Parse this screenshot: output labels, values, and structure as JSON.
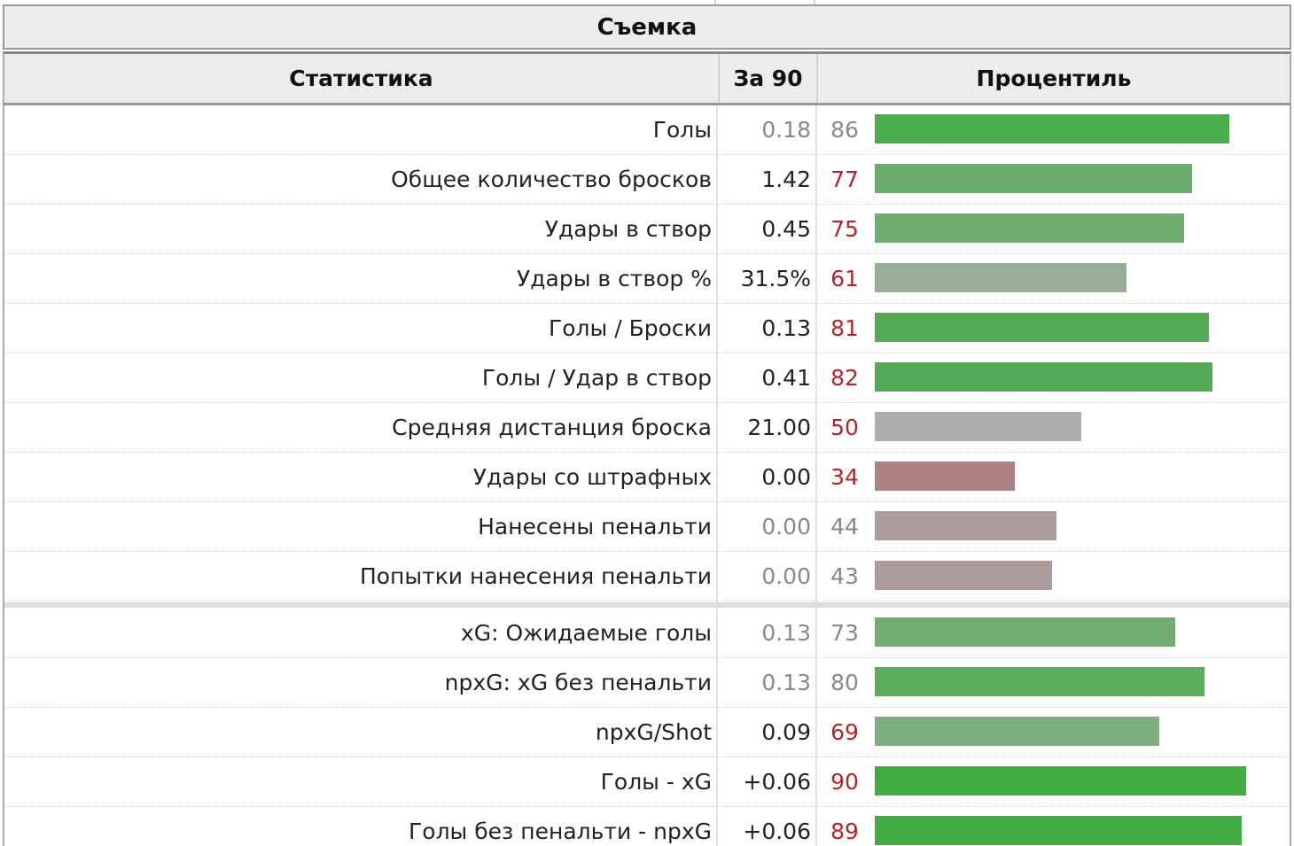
{
  "caption": "Съемка",
  "headers": {
    "stat": "Статистика",
    "per90": "За 90",
    "percentile": "Процентиль"
  },
  "colors": {
    "header_bg": "#ececec",
    "value_gray": "#888888",
    "value_dark": "#222222",
    "value_red": "#b3262a"
  },
  "rows": [
    {
      "label": "Голы",
      "value": "0.18",
      "percentile": "86",
      "pct": 86,
      "value_style": "gray",
      "pct_style": "gray",
      "bar_color": "#4cad4c"
    },
    {
      "label": "Общее количество бросков",
      "value": "1.42",
      "percentile": "77",
      "pct": 77,
      "value_style": "dark",
      "pct_style": "red",
      "bar_color": "#6aad6a"
    },
    {
      "label": "Удары в створ",
      "value": "0.45",
      "percentile": "75",
      "pct": 75,
      "value_style": "dark",
      "pct_style": "red",
      "bar_color": "#6eae6e"
    },
    {
      "label": "Удары в створ %",
      "value": "31.5%",
      "percentile": "61",
      "pct": 61,
      "value_style": "dark",
      "pct_style": "red",
      "bar_color": "#98ae96"
    },
    {
      "label": "Голы / Броски",
      "value": "0.13",
      "percentile": "81",
      "pct": 81,
      "value_style": "dark",
      "pct_style": "red",
      "bar_color": "#55ab55"
    },
    {
      "label": "Голы / Удар в створ",
      "value": "0.41",
      "percentile": "82",
      "pct": 82,
      "value_style": "dark",
      "pct_style": "red",
      "bar_color": "#55ab55"
    },
    {
      "label": "Средняя дистанция броска",
      "value": "21.00",
      "percentile": "50",
      "pct": 50,
      "value_style": "dark",
      "pct_style": "red",
      "bar_color": "#adadad"
    },
    {
      "label": "Удары со штрафных",
      "value": "0.00",
      "percentile": "34",
      "pct": 34,
      "value_style": "dark",
      "pct_style": "red",
      "bar_color": "#ad8282"
    },
    {
      "label": "Нанесены пенальти",
      "value": "0.00",
      "percentile": "44",
      "pct": 44,
      "value_style": "gray",
      "pct_style": "gray",
      "bar_color": "#ad9e9e"
    },
    {
      "label": "Попытки нанесения пенальти",
      "value": "0.00",
      "percentile": "43",
      "pct": 43,
      "value_style": "gray",
      "pct_style": "gray",
      "bar_color": "#ad9a9a"
    },
    {
      "label": "xG: Ожидаемые голы",
      "value": "0.13",
      "percentile": "73",
      "pct": 73,
      "value_style": "gray",
      "pct_style": "gray",
      "bar_color": "#72ae72"
    },
    {
      "label": "npxG: xG без пенальти",
      "value": "0.13",
      "percentile": "80",
      "pct": 80,
      "value_style": "gray",
      "pct_style": "gray",
      "bar_color": "#5bac5b"
    },
    {
      "label": "npxG/Shot",
      "value": "0.09",
      "percentile": "69",
      "pct": 69,
      "value_style": "dark",
      "pct_style": "red",
      "bar_color": "#7fae7f"
    },
    {
      "label": "Голы - xG",
      "value": "+0.06",
      "percentile": "90",
      "pct": 90,
      "value_style": "dark",
      "pct_style": "red",
      "bar_color": "#42ac42"
    },
    {
      "label": "Голы без пенальти - npxG",
      "value": "+0.06",
      "percentile": "89",
      "pct": 89,
      "value_style": "dark",
      "pct_style": "red",
      "bar_color": "#44ac44"
    }
  ]
}
